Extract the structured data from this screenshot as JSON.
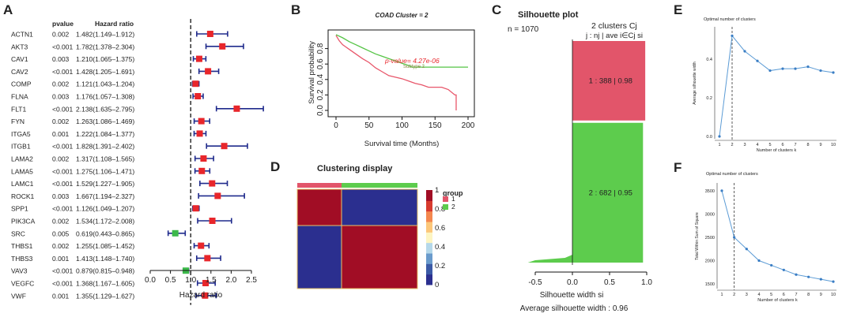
{
  "panels": {
    "a": "A",
    "b": "B",
    "c": "C",
    "d": "D",
    "e": "E",
    "f": "F"
  },
  "chart_data": [
    {
      "type": "forest",
      "panel": "A",
      "columns": [
        "pvalue",
        "Hazard ratio"
      ],
      "xlabel": "Hazard ratio",
      "xlim": [
        0,
        2.5
      ],
      "xticks": [
        "0.0",
        "0.5",
        "1.0",
        "1.5",
        "2.0",
        "2.5"
      ],
      "rows": [
        {
          "gene": "ACTN1",
          "p": "0.002",
          "ci": "1.482(1.149–1.912)",
          "hr": 1.482,
          "lo": 1.149,
          "hi": 1.912,
          "color": "#e8262b"
        },
        {
          "gene": "AKT3",
          "p": "<0.001",
          "ci": "1.782(1.378–2.304)",
          "hr": 1.782,
          "lo": 1.378,
          "hi": 2.304,
          "color": "#e8262b"
        },
        {
          "gene": "CAV1",
          "p": "0.003",
          "ci": "1.210(1.065–1.375)",
          "hr": 1.21,
          "lo": 1.065,
          "hi": 1.375,
          "color": "#e8262b"
        },
        {
          "gene": "CAV2",
          "p": "<0.001",
          "ci": "1.428(1.205–1.691)",
          "hr": 1.428,
          "lo": 1.205,
          "hi": 1.691,
          "color": "#e8262b"
        },
        {
          "gene": "COMP",
          "p": "0.002",
          "ci": "1.121(1.043–1.204)",
          "hr": 1.121,
          "lo": 1.043,
          "hi": 1.204,
          "color": "#e8262b"
        },
        {
          "gene": "FLNA",
          "p": "0.003",
          "ci": "1.176(1.057–1.308)",
          "hr": 1.176,
          "lo": 1.057,
          "hi": 1.308,
          "color": "#e8262b"
        },
        {
          "gene": "FLT1",
          "p": "<0.001",
          "ci": "2.138(1.635–2.795)",
          "hr": 2.138,
          "lo": 1.635,
          "hi": 2.795,
          "color": "#e8262b"
        },
        {
          "gene": "FYN",
          "p": "0.002",
          "ci": "1.263(1.086–1.469)",
          "hr": 1.263,
          "lo": 1.086,
          "hi": 1.469,
          "color": "#e8262b"
        },
        {
          "gene": "ITGA5",
          "p": "0.001",
          "ci": "1.222(1.084–1.377)",
          "hr": 1.222,
          "lo": 1.084,
          "hi": 1.377,
          "color": "#e8262b"
        },
        {
          "gene": "ITGB1",
          "p": "<0.001",
          "ci": "1.828(1.391–2.402)",
          "hr": 1.828,
          "lo": 1.391,
          "hi": 2.402,
          "color": "#e8262b"
        },
        {
          "gene": "LAMA2",
          "p": "0.002",
          "ci": "1.317(1.108–1.565)",
          "hr": 1.317,
          "lo": 1.108,
          "hi": 1.565,
          "color": "#e8262b"
        },
        {
          "gene": "LAMA5",
          "p": "<0.001",
          "ci": "1.275(1.106–1.471)",
          "hr": 1.275,
          "lo": 1.106,
          "hi": 1.471,
          "color": "#e8262b"
        },
        {
          "gene": "LAMC1",
          "p": "<0.001",
          "ci": "1.529(1.227–1.905)",
          "hr": 1.529,
          "lo": 1.227,
          "hi": 1.905,
          "color": "#e8262b"
        },
        {
          "gene": "ROCK1",
          "p": "0.003",
          "ci": "1.667(1.194–2.327)",
          "hr": 1.667,
          "lo": 1.194,
          "hi": 2.327,
          "color": "#e8262b"
        },
        {
          "gene": "SPP1",
          "p": "<0.001",
          "ci": "1.126(1.049–1.207)",
          "hr": 1.126,
          "lo": 1.049,
          "hi": 1.207,
          "color": "#e8262b"
        },
        {
          "gene": "PIK3CA",
          "p": "0.002",
          "ci": "1.534(1.172–2.008)",
          "hr": 1.534,
          "lo": 1.172,
          "hi": 2.008,
          "color": "#e8262b"
        },
        {
          "gene": "SRC",
          "p": "0.005",
          "ci": "0.619(0.443–0.865)",
          "hr": 0.619,
          "lo": 0.443,
          "hi": 0.865,
          "color": "#3cb94a"
        },
        {
          "gene": "THBS1",
          "p": "0.002",
          "ci": "1.255(1.085–1.452)",
          "hr": 1.255,
          "lo": 1.085,
          "hi": 1.452,
          "color": "#e8262b"
        },
        {
          "gene": "THBS3",
          "p": "0.001",
          "ci": "1.413(1.148–1.740)",
          "hr": 1.413,
          "lo": 1.148,
          "hi": 1.74,
          "color": "#e8262b"
        },
        {
          "gene": "VAV3",
          "p": "<0.001",
          "ci": "0.879(0.815–0.948)",
          "hr": 0.879,
          "lo": 0.815,
          "hi": 0.948,
          "color": "#3cb94a"
        },
        {
          "gene": "VEGFC",
          "p": "<0.001",
          "ci": "1.368(1.167–1.605)",
          "hr": 1.368,
          "lo": 1.167,
          "hi": 1.605,
          "color": "#e8262b"
        },
        {
          "gene": "VWF",
          "p": "0.001",
          "ci": "1.355(1.129–1.627)",
          "hr": 1.355,
          "lo": 1.129,
          "hi": 1.627,
          "color": "#e8262b"
        }
      ]
    },
    {
      "type": "line",
      "panel": "B",
      "title": "COAD Cluster = 2",
      "xlabel": "Survival time (Months)",
      "ylabel": "Survival probability",
      "xlim": [
        0,
        200
      ],
      "ylim": [
        0,
        1
      ],
      "xticks": [
        "0",
        "50",
        "100",
        "150",
        "200"
      ],
      "yticks": [
        "0.0",
        "0.2",
        "0.4",
        "0.6",
        "0.8"
      ],
      "annotation": "p-value= 4.27e-06",
      "legend": [
        "Subtype 1",
        "Subtype 2"
      ],
      "series": [
        {
          "name": "Subtype 1",
          "color": "#e8566a",
          "points": [
            [
              0,
              0.97
            ],
            [
              5,
              0.9
            ],
            [
              10,
              0.85
            ],
            [
              15,
              0.82
            ],
            [
              20,
              0.79
            ],
            [
              30,
              0.73
            ],
            [
              40,
              0.67
            ],
            [
              50,
              0.62
            ],
            [
              60,
              0.55
            ],
            [
              70,
              0.5
            ],
            [
              80,
              0.45
            ],
            [
              90,
              0.43
            ],
            [
              100,
              0.41
            ],
            [
              110,
              0.38
            ],
            [
              120,
              0.35
            ],
            [
              130,
              0.33
            ],
            [
              140,
              0.3
            ],
            [
              150,
              0.3
            ],
            [
              160,
              0.3
            ],
            [
              170,
              0.27
            ],
            [
              180,
              0.2
            ],
            [
              182,
              0.2
            ],
            [
              182,
              0
            ]
          ]
        },
        {
          "name": "Subtype 2",
          "color": "#55c445",
          "points": [
            [
              0,
              0.98
            ],
            [
              10,
              0.94
            ],
            [
              20,
              0.89
            ],
            [
              30,
              0.85
            ],
            [
              40,
              0.81
            ],
            [
              50,
              0.77
            ],
            [
              60,
              0.73
            ],
            [
              70,
              0.7
            ],
            [
              80,
              0.67
            ],
            [
              90,
              0.64
            ],
            [
              100,
              0.61
            ],
            [
              110,
              0.58
            ],
            [
              115,
              0.56
            ],
            [
              200,
              0.56
            ]
          ]
        }
      ]
    },
    {
      "type": "silhouette",
      "panel": "C",
      "title": "Silhouette plot",
      "n_label": "n = 1070",
      "header1": "2  clusters  Cj",
      "header2": "j :  nj | ave i∈Cj  si",
      "xlabel": "Silhouette width si",
      "xlim": [
        -0.5,
        1
      ],
      "xticks": [
        "-0.5",
        "0.0",
        "0.5",
        "1.0"
      ],
      "clusters": [
        {
          "label": "1 :  388  |  0.98",
          "n": 388,
          "avg": 0.98,
          "color": "#e2556a"
        },
        {
          "label": "2 :  682  |  0.95",
          "n": 682,
          "avg": 0.95,
          "color": "#5dcc4d"
        }
      ],
      "footer": "Average silhouette width :  0.96"
    },
    {
      "type": "heatmap",
      "panel": "D",
      "title": "Clustering display",
      "legend_title": "group",
      "groups": [
        {
          "label": "1",
          "color": "#e2556a"
        },
        {
          "label": "2",
          "color": "#5dcc4d"
        }
      ],
      "scale_ticks": [
        "0",
        "0.2",
        "0.4",
        "0.6",
        "0.8",
        "1"
      ],
      "scale_colors": [
        "#2b2f8f",
        "#3b5aa6",
        "#6a9bcc",
        "#b5d8ea",
        "#fdf5c2",
        "#fcc77a",
        "#f4874e",
        "#d73a2e",
        "#a10d25"
      ],
      "blocks": [
        {
          "row": 0,
          "col": 0,
          "value": 1
        },
        {
          "row": 0,
          "col": 1,
          "value": 0
        },
        {
          "row": 1,
          "col": 0,
          "value": 0
        },
        {
          "row": 1,
          "col": 1,
          "value": 1
        }
      ]
    },
    {
      "type": "line",
      "panel": "E",
      "title": "Optimal number of clusters",
      "xlabel": "Number of clusters k",
      "ylabel": "Average silhouette width",
      "categories": [
        "1",
        "2",
        "3",
        "4",
        "5",
        "6",
        "7",
        "8",
        "9",
        "10"
      ],
      "values": [
        0.0,
        0.52,
        0.44,
        0.39,
        0.34,
        0.35,
        0.35,
        0.36,
        0.34,
        0.33
      ],
      "ylim": [
        0,
        0.55
      ],
      "yticks": [
        "0.0",
        "0.2",
        "0.4"
      ],
      "vline": 2
    },
    {
      "type": "line",
      "panel": "F",
      "title": "Optimal number of clusters",
      "xlabel": "Number of clusters k",
      "ylabel": "Total Within Sum of Square",
      "categories": [
        "1",
        "2",
        "3",
        "4",
        "5",
        "6",
        "7",
        "8",
        "9",
        "10"
      ],
      "values": [
        3500,
        2500,
        2250,
        2000,
        1900,
        1800,
        1700,
        1650,
        1600,
        1550
      ],
      "ylim": [
        1450,
        3600
      ],
      "yticks": [
        "1500",
        "2000",
        "2500",
        "3000",
        "3500"
      ],
      "vline": 2
    }
  ]
}
